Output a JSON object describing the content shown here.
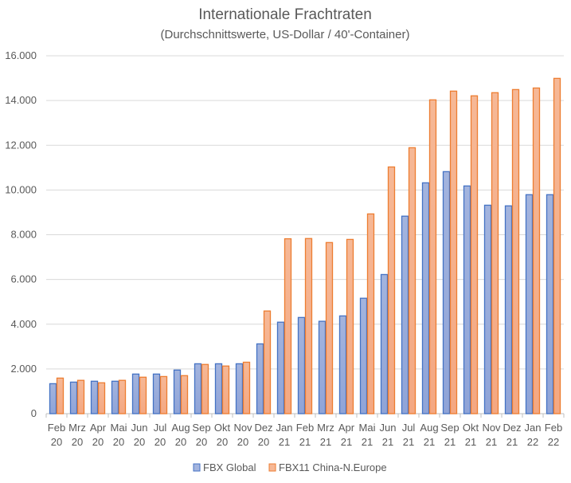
{
  "chart_data": {
    "type": "bar",
    "title": "Internationale Frachtraten",
    "subtitle": "(Durchschnittswerte, US-Dollar / 40'-Container)",
    "categories": [
      [
        "Feb",
        "20"
      ],
      [
        "Mrz",
        "20"
      ],
      [
        "Apr",
        "20"
      ],
      [
        "Mai",
        "20"
      ],
      [
        "Jun",
        "20"
      ],
      [
        "Jul",
        "20"
      ],
      [
        "Aug",
        "20"
      ],
      [
        "Sep",
        "20"
      ],
      [
        "Okt",
        "20"
      ],
      [
        "Nov",
        "20"
      ],
      [
        "Dez",
        "20"
      ],
      [
        "Jan",
        "21"
      ],
      [
        "Feb",
        "21"
      ],
      [
        "Mrz",
        "21"
      ],
      [
        "Apr",
        "21"
      ],
      [
        "Mai",
        "21"
      ],
      [
        "Jun",
        "21"
      ],
      [
        "Jul",
        "21"
      ],
      [
        "Aug",
        "21"
      ],
      [
        "Sep",
        "21"
      ],
      [
        "Okt",
        "21"
      ],
      [
        "Nov",
        "21"
      ],
      [
        "Dez",
        "21"
      ],
      [
        "Jan",
        "22"
      ],
      [
        "Feb",
        "22"
      ]
    ],
    "series": [
      {
        "name": "FBX Global",
        "color": "#4472c4",
        "fill": "#a3b4de",
        "values": [
          1340,
          1410,
          1450,
          1450,
          1770,
          1770,
          1950,
          2230,
          2230,
          2230,
          3120,
          4090,
          4300,
          4130,
          4370,
          5160,
          6220,
          8830,
          10320,
          10820,
          10180,
          9320,
          9290,
          9790,
          9790
        ]
      },
      {
        "name": "FBX11 China-N.Europe",
        "color": "#ed7d31",
        "fill": "#f6b896",
        "values": [
          1590,
          1490,
          1380,
          1490,
          1630,
          1660,
          1700,
          2200,
          2130,
          2300,
          4590,
          7820,
          7830,
          7650,
          7790,
          8930,
          11030,
          11890,
          14030,
          14420,
          14210,
          14350,
          14490,
          14560,
          14990
        ]
      }
    ],
    "ylim": [
      0,
      16000
    ],
    "yticks": [
      "0",
      "2.000",
      "4.000",
      "6.000",
      "8.000",
      "10.000",
      "12.000",
      "14.000",
      "16.000"
    ],
    "grid": true,
    "legend": "bottom"
  }
}
